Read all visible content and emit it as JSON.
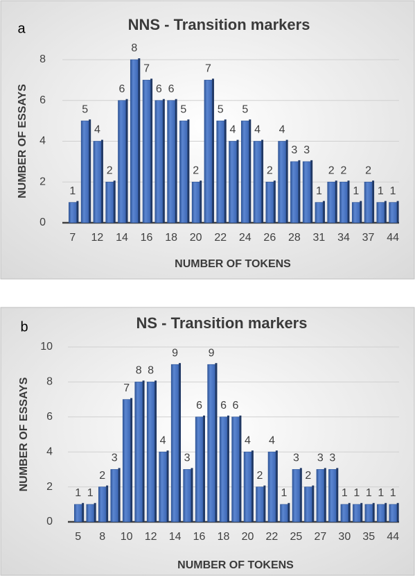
{
  "chart_data": [
    {
      "type": "bar",
      "panel_label": "a",
      "title": "NNS - Transition markers",
      "x_label": "NUMBER OF TOKENS",
      "y_label": "NUMBER OF ESSAYS",
      "categories": [
        "7",
        null,
        "12",
        null,
        "14",
        null,
        "16",
        null,
        "18",
        null,
        "20",
        null,
        "22",
        null,
        "24",
        null,
        "26",
        null,
        "28",
        null,
        "31",
        null,
        "34",
        null,
        "37",
        null,
        "44"
      ],
      "values": [
        1,
        5,
        4,
        2,
        6,
        8,
        7,
        6,
        6,
        5,
        2,
        7,
        5,
        4,
        5,
        4,
        2,
        4,
        3,
        3,
        1,
        2,
        2,
        1,
        2,
        1,
        1
      ],
      "color": "#4472c4",
      "ylim": [
        0,
        8
      ],
      "yticks": [
        0,
        2,
        4,
        6,
        8
      ],
      "grid": true
    },
    {
      "type": "bar",
      "panel_label": "b",
      "title": "NS - Transition markers",
      "x_label": "NUMBER OF TOKENS",
      "y_label": "NUMBER OF ESSAYS",
      "categories": [
        "5",
        null,
        "8",
        null,
        "10",
        null,
        "12",
        null,
        "14",
        null,
        "16",
        null,
        "18",
        null,
        "20",
        null,
        "22",
        null,
        "25",
        null,
        "27",
        null,
        "30",
        null,
        "35",
        null,
        "44"
      ],
      "values": [
        1,
        1,
        2,
        3,
        7,
        8,
        8,
        4,
        9,
        3,
        6,
        9,
        6,
        6,
        4,
        2,
        4,
        1,
        3,
        2,
        3,
        3,
        1,
        1,
        1,
        1,
        1
      ],
      "color": "#4472c4",
      "ylim": [
        0,
        10
      ],
      "yticks": [
        0,
        2,
        4,
        6,
        8,
        10
      ],
      "grid": true
    }
  ]
}
